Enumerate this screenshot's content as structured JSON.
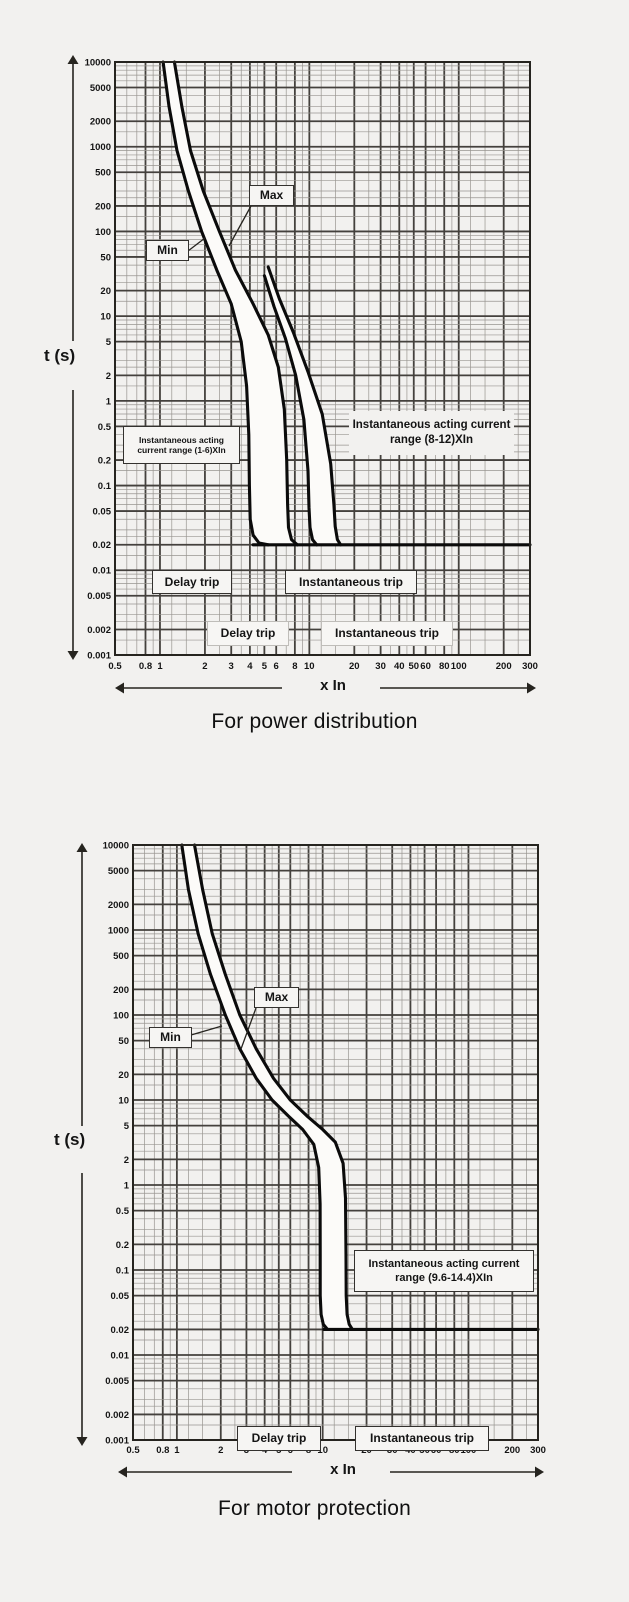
{
  "page": {
    "background": "#f2f1ef",
    "grid_minor_color": "#989590",
    "grid_major_color": "#44413d",
    "curve_color": "#0b0b0b",
    "band_fill": "#fcfbf9",
    "text_color": "#141414"
  },
  "chart_data": [
    {
      "type": "line",
      "title": "For power distribution",
      "xlabel": "x In",
      "ylabel": "t (s)",
      "x_scale": "log",
      "y_scale": "log",
      "xlim": [
        0.5,
        300
      ],
      "ylim": [
        0.001,
        10000
      ],
      "x_ticks": [
        "0.5",
        "0.8",
        "1",
        "2",
        "3",
        "4",
        "5",
        "6",
        "8",
        "10",
        "20",
        "30",
        "40",
        "50",
        "60",
        "80",
        "100",
        "200",
        "300"
      ],
      "y_ticks": [
        "10000",
        "5000",
        "2000",
        "1000",
        "500",
        "200",
        "100",
        "50",
        "20",
        "10",
        "5",
        "2",
        "1",
        "0.5",
        "0.2",
        "0.1",
        "0.05",
        "0.02",
        "0.01",
        "0.005",
        "0.002",
        "0.001"
      ],
      "grid": true,
      "legend": "none",
      "annotations": {
        "max_label": "Max",
        "min_label": "Min",
        "inst_range_min": "Instantaneous acting current range (1-6)XIn",
        "inst_range_max": "Instantaneous acting current range (8-12)XIn",
        "delay_trip_1": "Delay trip",
        "inst_trip_1": "Instantaneous trip",
        "delay_trip_2": "Delay trip",
        "inst_trip_2": "Instantaneous trip"
      },
      "series": [
        {
          "name": "Min",
          "points": [
            [
              1.05,
              10000
            ],
            [
              1.15,
              3000
            ],
            [
              1.3,
              900
            ],
            [
              1.55,
              300
            ],
            [
              1.9,
              100
            ],
            [
              2.4,
              35
            ],
            [
              3.0,
              14
            ],
            [
              3.5,
              5
            ],
            [
              3.8,
              1.5
            ],
            [
              3.93,
              0.4
            ],
            [
              3.97,
              0.1
            ],
            [
              4.02,
              0.04
            ],
            [
              4.2,
              0.026
            ],
            [
              4.6,
              0.021
            ],
            [
              5.3,
              0.02
            ]
          ]
        },
        {
          "name": "Max",
          "points": [
            [
              1.25,
              10000
            ],
            [
              1.4,
              3000
            ],
            [
              1.6,
              900
            ],
            [
              1.95,
              300
            ],
            [
              2.5,
              100
            ],
            [
              3.2,
              35
            ],
            [
              4.2,
              14
            ],
            [
              5.3,
              6
            ],
            [
              6.2,
              2.5
            ],
            [
              6.8,
              0.8
            ],
            [
              7.05,
              0.2
            ],
            [
              7.15,
              0.06
            ],
            [
              7.25,
              0.032
            ],
            [
              7.6,
              0.023
            ],
            [
              8.3,
              0.02
            ]
          ]
        },
        {
          "name": "Instantaneous min boundary",
          "points": [
            [
              5.0,
              30
            ],
            [
              5.8,
              13
            ],
            [
              6.9,
              5.5
            ],
            [
              8.1,
              2
            ],
            [
              9.2,
              0.6
            ],
            [
              9.8,
              0.15
            ],
            [
              9.95,
              0.055
            ],
            [
              10.1,
              0.032
            ],
            [
              10.5,
              0.023
            ],
            [
              11.2,
              0.02
            ]
          ]
        },
        {
          "name": "Instantaneous max boundary",
          "points": [
            [
              5.3,
              38
            ],
            [
              6.3,
              16
            ],
            [
              7.8,
              6.5
            ],
            [
              9.8,
              2.2
            ],
            [
              12.2,
              0.7
            ],
            [
              13.9,
              0.18
            ],
            [
              14.6,
              0.06
            ],
            [
              14.9,
              0.033
            ],
            [
              15.4,
              0.023
            ],
            [
              16.2,
              0.02
            ]
          ]
        },
        {
          "name": "Instantaneous trip level 0.02s",
          "points": [
            [
              4.2,
              0.02
            ],
            [
              300,
              0.02
            ]
          ]
        }
      ],
      "bands": [
        [
          0,
          1
        ],
        [
          2,
          3
        ]
      ]
    },
    {
      "type": "line",
      "title": "For motor protection",
      "xlabel": "x In",
      "ylabel": "t (s)",
      "x_scale": "log",
      "y_scale": "log",
      "xlim": [
        0.5,
        300
      ],
      "ylim": [
        0.001,
        10000
      ],
      "x_ticks": [
        "0.5",
        "0.8",
        "1",
        "2",
        "3",
        "4",
        "5",
        "6",
        "8",
        "10",
        "20",
        "30",
        "40",
        "50",
        "60",
        "80",
        "100",
        "200",
        "300"
      ],
      "y_ticks": [
        "10000",
        "5000",
        "2000",
        "1000",
        "500",
        "200",
        "100",
        "50",
        "20",
        "10",
        "5",
        "2",
        "1",
        "0.5",
        "0.2",
        "0.1",
        "0.05",
        "0.02",
        "0.01",
        "0.005",
        "0.002",
        "0.001"
      ],
      "grid": true,
      "legend": "none",
      "annotations": {
        "max_label": "Max",
        "min_label": "Min",
        "inst_range": "Instantaneous acting current range (9.6-14.4)XIn",
        "delay_trip": "Delay trip",
        "inst_trip": "Instantaneous trip"
      },
      "series": [
        {
          "name": "Min",
          "points": [
            [
              1.08,
              10000
            ],
            [
              1.2,
              3000
            ],
            [
              1.4,
              900
            ],
            [
              1.7,
              300
            ],
            [
              2.15,
              100
            ],
            [
              2.7,
              40
            ],
            [
              3.5,
              18
            ],
            [
              4.5,
              10
            ],
            [
              5.8,
              6.5
            ],
            [
              7.3,
              4.5
            ],
            [
              8.7,
              3
            ],
            [
              9.4,
              1.6
            ],
            [
              9.6,
              0.6
            ],
            [
              9.62,
              0.15
            ],
            [
              9.62,
              0.05
            ],
            [
              9.75,
              0.03
            ],
            [
              10.1,
              0.023
            ],
            [
              10.8,
              0.02
            ]
          ]
        },
        {
          "name": "Max",
          "points": [
            [
              1.32,
              10000
            ],
            [
              1.5,
              3000
            ],
            [
              1.75,
              900
            ],
            [
              2.15,
              300
            ],
            [
              2.7,
              100
            ],
            [
              3.5,
              40
            ],
            [
              4.6,
              18
            ],
            [
              6.0,
              10
            ],
            [
              7.8,
              6.5
            ],
            [
              10.0,
              4.5
            ],
            [
              12.2,
              3.2
            ],
            [
              13.8,
              1.8
            ],
            [
              14.35,
              0.7
            ],
            [
              14.45,
              0.15
            ],
            [
              14.5,
              0.05
            ],
            [
              14.7,
              0.03
            ],
            [
              15.2,
              0.023
            ],
            [
              16.0,
              0.02
            ]
          ]
        },
        {
          "name": "Instantaneous trip level 0.02s",
          "points": [
            [
              10.2,
              0.02
            ],
            [
              300,
              0.02
            ]
          ]
        }
      ],
      "bands": [
        [
          0,
          1
        ]
      ]
    }
  ]
}
